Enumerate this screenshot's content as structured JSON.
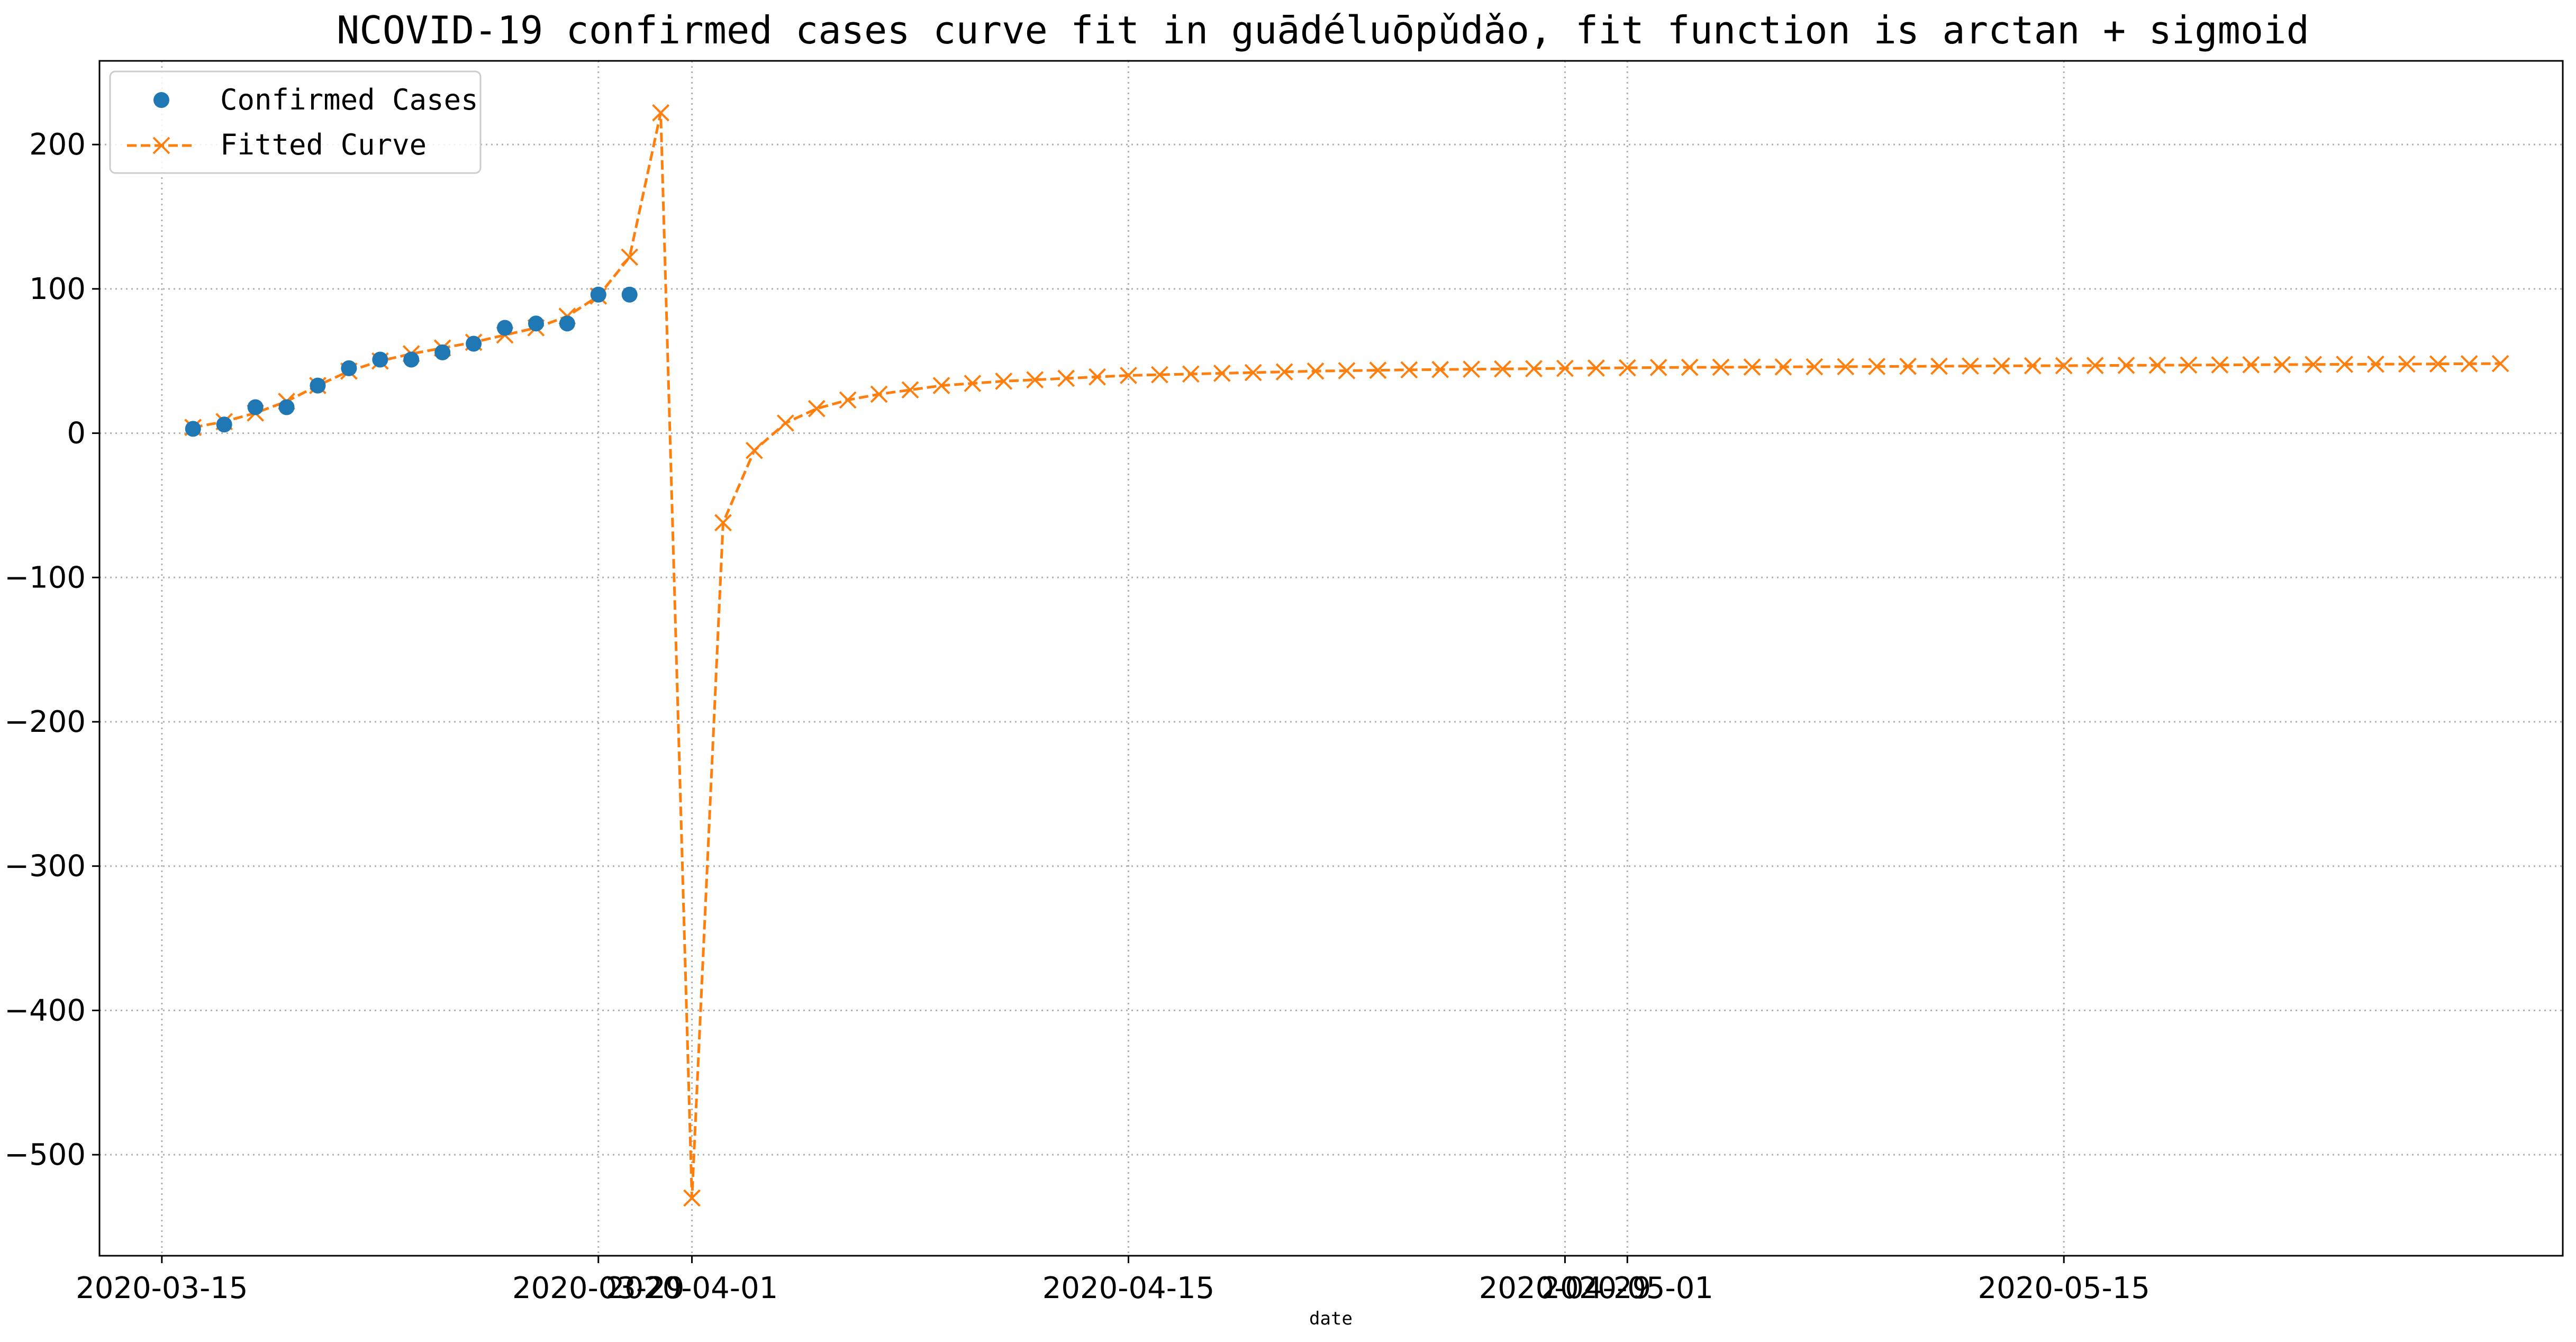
{
  "chart_data": {
    "type": "line",
    "title": "NCOVID-19 confirmed cases curve fit in guādéluōpǔdǎo, fit function is arctan + sigmoid",
    "xlabel": "date",
    "ylabel": "",
    "x_is_date": true,
    "xlim": [
      "2020-03-13",
      "2020-05-31"
    ],
    "ylim": [
      -570,
      258
    ],
    "yticks": [
      -500,
      -400,
      -300,
      -200,
      -100,
      0,
      100,
      200
    ],
    "xtick_dates": [
      "2020-03-15",
      "2020-03-29",
      "2020-04-01",
      "2020-04-15",
      "2020-04-29",
      "2020-05-01",
      "2020-05-15"
    ],
    "xtick_labels": [
      "2020-03-15",
      "2020-03-29",
      "2020-04-01",
      "2020-04-15",
      "2020-04-29",
      "2020-05-01",
      "2020-05-15"
    ],
    "grid": true,
    "legend_position": "top-left",
    "series": [
      {
        "name": "Confirmed Cases",
        "style": "markers",
        "marker": "circle",
        "color": "#1f77b4",
        "x": [
          "2020-03-16",
          "2020-03-17",
          "2020-03-18",
          "2020-03-19",
          "2020-03-20",
          "2020-03-21",
          "2020-03-22",
          "2020-03-23",
          "2020-03-24",
          "2020-03-25",
          "2020-03-26",
          "2020-03-27",
          "2020-03-28",
          "2020-03-29",
          "2020-03-30"
        ],
        "y": [
          3,
          6,
          18,
          18,
          33,
          45,
          51,
          51,
          56,
          62,
          73,
          76,
          76,
          96,
          96
        ]
      },
      {
        "name": "Fitted Curve",
        "style": "dashed-line-x-markers",
        "marker": "x",
        "color": "#ff7f0e",
        "x": [
          "2020-03-16",
          "2020-03-17",
          "2020-03-18",
          "2020-03-19",
          "2020-03-20",
          "2020-03-21",
          "2020-03-22",
          "2020-03-23",
          "2020-03-24",
          "2020-03-25",
          "2020-03-26",
          "2020-03-27",
          "2020-03-28",
          "2020-03-29",
          "2020-03-30",
          "2020-03-31",
          "2020-04-01",
          "2020-04-02",
          "2020-04-03",
          "2020-04-04",
          "2020-04-05",
          "2020-04-06",
          "2020-04-07",
          "2020-04-08",
          "2020-04-09",
          "2020-04-10",
          "2020-04-11",
          "2020-04-12",
          "2020-04-13",
          "2020-04-14",
          "2020-04-15",
          "2020-04-16",
          "2020-04-17",
          "2020-04-18",
          "2020-04-19",
          "2020-04-20",
          "2020-04-21",
          "2020-04-22",
          "2020-04-23",
          "2020-04-24",
          "2020-04-25",
          "2020-04-26",
          "2020-04-27",
          "2020-04-28",
          "2020-04-29",
          "2020-04-30",
          "2020-05-01",
          "2020-05-02",
          "2020-05-03",
          "2020-05-04",
          "2020-05-05",
          "2020-05-06",
          "2020-05-07",
          "2020-05-08",
          "2020-05-09",
          "2020-05-10",
          "2020-05-11",
          "2020-05-12",
          "2020-05-13",
          "2020-05-14",
          "2020-05-15",
          "2020-05-16",
          "2020-05-17",
          "2020-05-18",
          "2020-05-19",
          "2020-05-20",
          "2020-05-21",
          "2020-05-22",
          "2020-05-23",
          "2020-05-24",
          "2020-05-25",
          "2020-05-26",
          "2020-05-27",
          "2020-05-28",
          "2020-05-29"
        ],
        "y": [
          4,
          8,
          14,
          22,
          33,
          43,
          50,
          55,
          59,
          63,
          68,
          73,
          81,
          95,
          122,
          222,
          -530,
          -62,
          -12,
          7,
          17,
          23,
          27,
          30,
          33,
          34.5,
          36,
          37,
          38,
          39,
          40,
          40.5,
          41,
          41.5,
          42,
          42.5,
          43,
          43.3,
          43.6,
          43.9,
          44.1,
          44.3,
          44.5,
          44.7,
          44.9,
          45.1,
          45.3,
          45.5,
          45.6,
          45.7,
          45.8,
          45.9,
          46,
          46.1,
          46.2,
          46.3,
          46.4,
          46.5,
          46.6,
          46.7,
          46.8,
          46.9,
          47,
          47.1,
          47.2,
          47.3,
          47.4,
          47.5,
          47.6,
          47.7,
          47.8,
          47.9,
          48,
          48.1,
          48.2
        ]
      }
    ]
  }
}
